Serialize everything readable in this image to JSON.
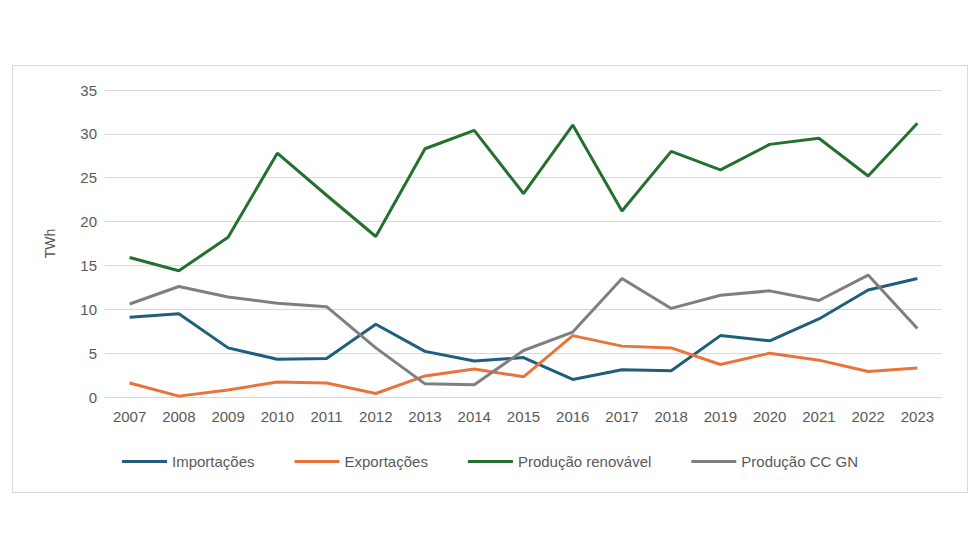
{
  "chart_data": {
    "type": "line",
    "y_label": "TWh",
    "categories": [
      "2007",
      "2008",
      "2009",
      "2010",
      "2011",
      "2012",
      "2013",
      "2014",
      "2015",
      "2016",
      "2017",
      "2018",
      "2019",
      "2020",
      "2021",
      "2022",
      "2023"
    ],
    "series": [
      {
        "name": "Importações",
        "color": "#1f5f7d",
        "values": [
          9.1,
          9.5,
          5.6,
          4.3,
          4.4,
          8.3,
          5.2,
          4.1,
          4.5,
          2.0,
          3.1,
          3.0,
          7.0,
          6.4,
          8.9,
          12.2,
          13.5
        ]
      },
      {
        "name": "Exportações",
        "color": "#e8743b",
        "values": [
          1.6,
          0.1,
          0.8,
          1.7,
          1.6,
          0.4,
          2.4,
          3.2,
          2.3,
          7.0,
          5.8,
          5.6,
          3.7,
          5.0,
          4.2,
          2.9,
          3.3
        ]
      },
      {
        "name": "Produção renovável",
        "color": "#23702f",
        "values": [
          15.9,
          14.4,
          18.2,
          27.8,
          23.0,
          18.3,
          28.3,
          30.4,
          23.2,
          31.0,
          21.2,
          28.0,
          25.9,
          28.8,
          29.5,
          25.2,
          31.2
        ]
      },
      {
        "name": "Produção CC GN",
        "color": "#7f7f7f",
        "values": [
          10.6,
          12.6,
          11.4,
          10.7,
          10.3,
          5.6,
          1.5,
          1.4,
          5.3,
          7.4,
          13.5,
          10.1,
          11.6,
          12.1,
          11.0,
          13.9,
          7.8
        ]
      }
    ],
    "ylim": [
      0,
      35
    ],
    "yticks": [
      0,
      5,
      10,
      15,
      20,
      25,
      30,
      35
    ],
    "grid": true,
    "legend": "bottom"
  }
}
